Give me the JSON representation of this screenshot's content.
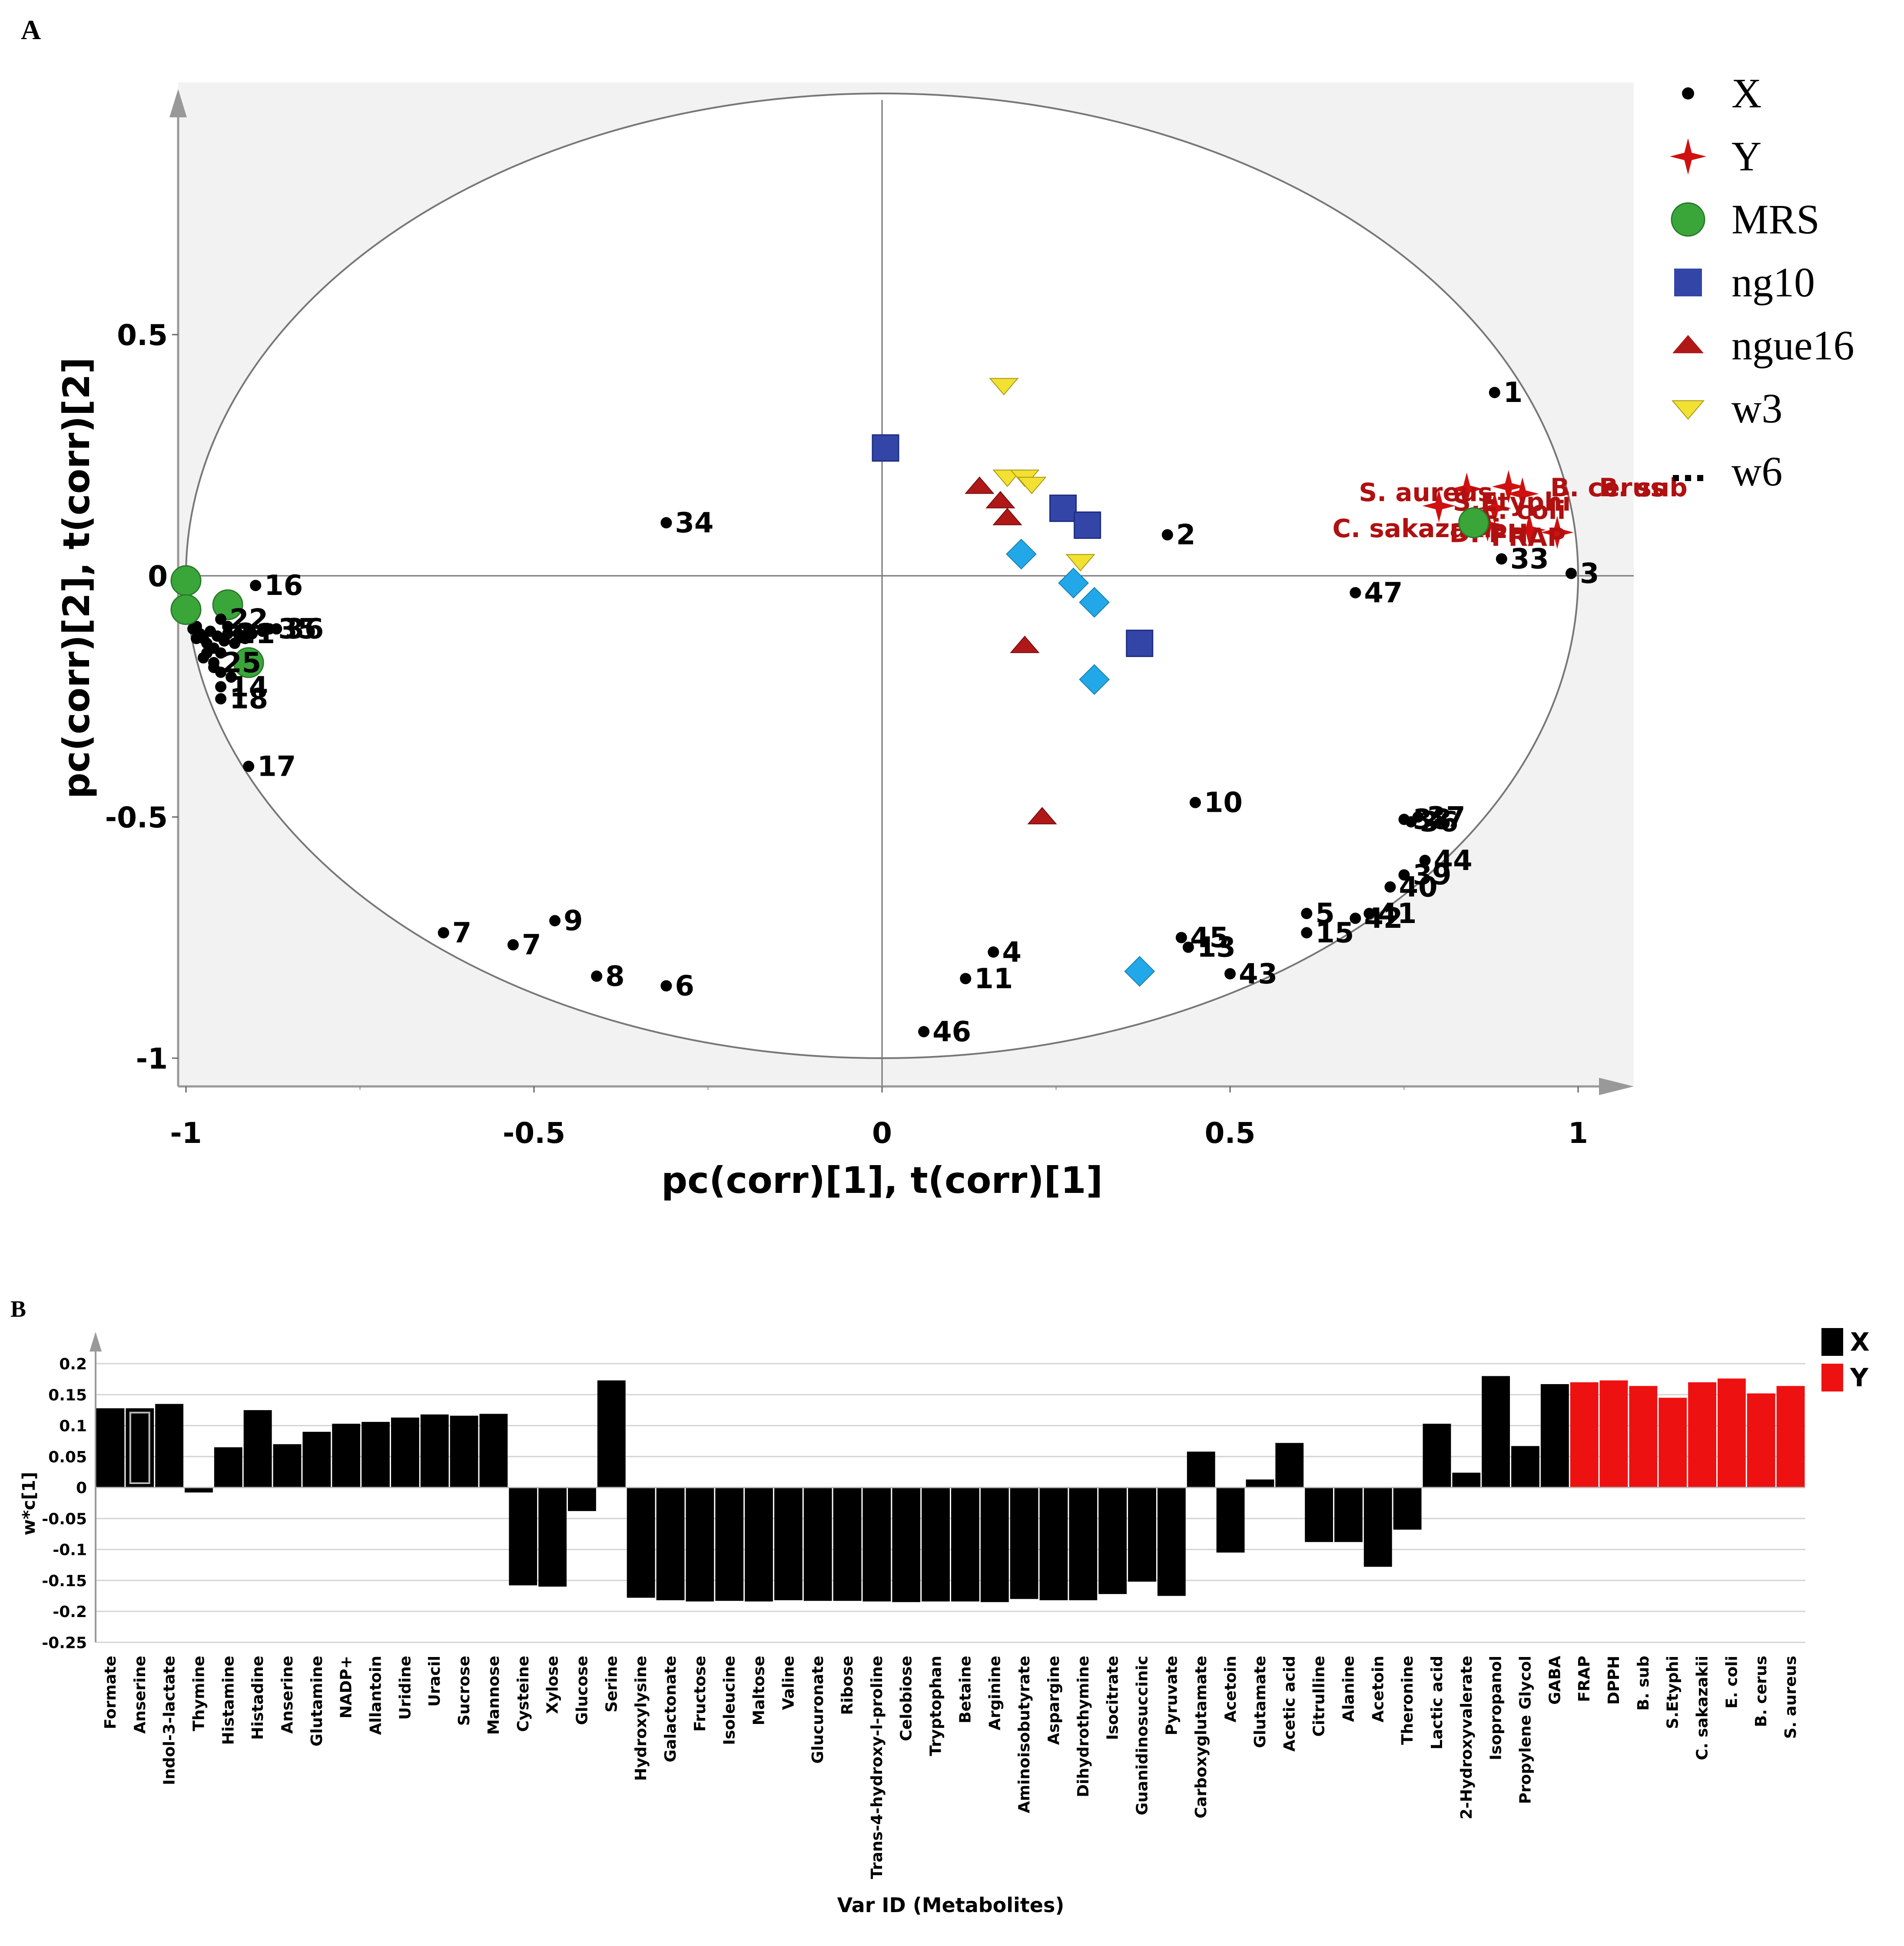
{
  "panels": {
    "a_label": "A",
    "b_label": "B"
  },
  "colors": {
    "X": "#000000",
    "Y": "#d01010",
    "MRS": "#3aa63a",
    "ng10": "#3346a8",
    "ngue16": "#b01818",
    "w3": "#f2e033",
    "w6": "#22a8e8",
    "plot_bg": "#f2f2f2",
    "bar_x": "#000000",
    "bar_y": "#ee1111",
    "y_label": "#b01010"
  },
  "chart_data": [
    {
      "type": "scatter",
      "title": "",
      "xlabel": "pc(corr)[1], t(corr)[1]",
      "ylabel": "pc(corr)[2], t(corr)[2]",
      "xlim": [
        -1.02,
        1.08
      ],
      "ylim": [
        -1.06,
        1.01
      ],
      "xticks": [
        {
          "v": -1,
          "label": "-1"
        },
        {
          "v": -0.5,
          "label": "-0.5"
        },
        {
          "v": 0,
          "label": "0"
        },
        {
          "v": 0.5,
          "label": "0.5"
        },
        {
          "v": 1,
          "label": "1"
        }
      ],
      "yticks": [
        {
          "v": 0.5,
          "label": "0.5"
        },
        {
          "v": 0,
          "label": "0"
        },
        {
          "v": -0.5,
          "label": "-0.5"
        },
        {
          "v": -1,
          "label": "-1"
        }
      ],
      "legend": [
        {
          "name": "X",
          "marker": "dot"
        },
        {
          "name": "Y",
          "marker": "star"
        },
        {
          "name": "MRS",
          "marker": "circle"
        },
        {
          "name": "ng10",
          "marker": "square"
        },
        {
          "name": "ngue16",
          "marker": "triangle"
        },
        {
          "name": "w3",
          "marker": "triangle-down"
        },
        {
          "name": "w6",
          "marker": "ellipsis"
        }
      ],
      "x_loadings": [
        {
          "label": "1",
          "x": 0.88,
          "y": 0.38
        },
        {
          "label": "2",
          "x": 0.41,
          "y": 0.085
        },
        {
          "label": "3",
          "x": 0.99,
          "y": 0.005
        },
        {
          "label": "33",
          "x": 0.89,
          "y": 0.035
        },
        {
          "label": "47",
          "x": 0.68,
          "y": -0.035
        },
        {
          "label": "34",
          "x": -0.31,
          "y": 0.11
        },
        {
          "label": "16",
          "x": -0.9,
          "y": -0.02
        },
        {
          "label": "17",
          "x": -0.91,
          "y": -0.395
        },
        {
          "label": "10",
          "x": 0.45,
          "y": -0.47
        },
        {
          "label": "9",
          "x": -0.47,
          "y": -0.715
        },
        {
          "label": "7",
          "x": -0.63,
          "y": -0.74
        },
        {
          "label": "7",
          "x": -0.53,
          "y": -0.765
        },
        {
          "label": "8",
          "x": -0.41,
          "y": -0.83
        },
        {
          "label": "6",
          "x": -0.31,
          "y": -0.85
        },
        {
          "label": "4",
          "x": 0.16,
          "y": -0.78
        },
        {
          "label": "11",
          "x": 0.12,
          "y": -0.835
        },
        {
          "label": "46",
          "x": 0.06,
          "y": -0.945
        },
        {
          "label": "45",
          "x": 0.43,
          "y": -0.75
        },
        {
          "label": "13",
          "x": 0.44,
          "y": -0.77
        },
        {
          "label": "43",
          "x": 0.5,
          "y": -0.825
        },
        {
          "label": "5",
          "x": 0.61,
          "y": -0.7
        },
        {
          "label": "15",
          "x": 0.61,
          "y": -0.74
        },
        {
          "label": "41",
          "x": 0.7,
          "y": -0.7
        },
        {
          "label": "42",
          "x": 0.68,
          "y": -0.71
        },
        {
          "label": "40",
          "x": 0.73,
          "y": -0.645
        },
        {
          "label": "39",
          "x": 0.75,
          "y": -0.62
        },
        {
          "label": "44",
          "x": 0.78,
          "y": -0.59
        },
        {
          "label": "37",
          "x": 0.77,
          "y": -0.5
        },
        {
          "label": "38",
          "x": 0.75,
          "y": -0.505
        },
        {
          "label": "36",
          "x": 0.76,
          "y": -0.51
        },
        {
          "label": "35",
          "x": -0.88,
          "y": -0.11
        },
        {
          "label": "36",
          "x": -0.87,
          "y": -0.11
        },
        {
          "label": "22",
          "x": -0.95,
          "y": -0.09
        },
        {
          "label": "21",
          "x": -0.94,
          "y": -0.12
        },
        {
          "label": "25",
          "x": -0.96,
          "y": -0.18
        },
        {
          "label": "14",
          "x": -0.95,
          "y": -0.23
        },
        {
          "label": "18",
          "x": -0.95,
          "y": -0.255
        }
      ],
      "x_cluster_unlabeled": [
        [
          -0.99,
          -0.11
        ],
        [
          -0.98,
          -0.12
        ],
        [
          -0.975,
          -0.13
        ],
        [
          -0.97,
          -0.14
        ],
        [
          -0.965,
          -0.115
        ],
        [
          -0.96,
          -0.15
        ],
        [
          -0.955,
          -0.125
        ],
        [
          -0.95,
          -0.16
        ],
        [
          -0.945,
          -0.135
        ],
        [
          -0.94,
          -0.105
        ],
        [
          -0.93,
          -0.14
        ],
        [
          -0.925,
          -0.12
        ],
        [
          -0.92,
          -0.17
        ],
        [
          -0.915,
          -0.13
        ],
        [
          -0.91,
          -0.115
        ],
        [
          -0.985,
          -0.13
        ],
        [
          -0.97,
          -0.16
        ],
        [
          -0.96,
          -0.19
        ],
        [
          -0.975,
          -0.17
        ],
        [
          -0.905,
          -0.12
        ],
        [
          -0.89,
          -0.115
        ],
        [
          -0.95,
          -0.2
        ],
        [
          -0.935,
          -0.21
        ],
        [
          -0.985,
          -0.105
        ]
      ],
      "y_loadings": [
        {
          "label": "S. aureus",
          "x": 0.84,
          "y": 0.18
        },
        {
          "label": "B. cerus",
          "x": 0.9,
          "y": 0.185
        },
        {
          "label": "B. sub",
          "x": 0.92,
          "y": 0.17
        },
        {
          "label": "E. coli",
          "x": 0.88,
          "y": 0.14
        },
        {
          "label": "S.Etyphi",
          "x": 0.8,
          "y": 0.145
        },
        {
          "label": "C. sakazakii",
          "x": 0.87,
          "y": 0.105
        },
        {
          "label": "DPPH",
          "x": 0.93,
          "y": 0.095
        },
        {
          "label": "FRAP",
          "x": 0.97,
          "y": 0.09
        }
      ],
      "y_text_labels": [
        {
          "text": "S. aureus",
          "x": 0.685,
          "y": 0.155,
          "dx_class": "a"
        },
        {
          "text": "B. cerus",
          "x": 0.96,
          "y": 0.165
        },
        {
          "text": "B. sub",
          "x": 1.03,
          "y": 0.165
        },
        {
          "text": "S.Etyphi",
          "x": 0.82,
          "y": 0.135
        },
        {
          "text": "E. coli",
          "x": 0.86,
          "y": 0.118
        },
        {
          "text": "C. sakazakii",
          "x": 0.647,
          "y": 0.08
        },
        {
          "text": "DPPH",
          "x": 0.815,
          "y": 0.07
        },
        {
          "text": "FRAP",
          "x": 0.875,
          "y": 0.062
        }
      ],
      "MRS": [
        [
          0.85,
          0.11
        ],
        [
          -1.0,
          -0.01
        ],
        [
          -1.0,
          -0.07
        ],
        [
          -0.94,
          -0.06
        ],
        [
          -0.91,
          -0.18
        ]
      ],
      "ng10": [
        [
          0.005,
          0.265
        ],
        [
          0.26,
          0.14
        ],
        [
          0.295,
          0.105
        ],
        [
          0.37,
          -0.14
        ]
      ],
      "ngue16": [
        [
          0.14,
          0.185
        ],
        [
          0.17,
          0.155
        ],
        [
          0.18,
          0.12
        ],
        [
          0.205,
          -0.145
        ],
        [
          0.23,
          -0.5
        ]
      ],
      "w3": [
        [
          0.175,
          0.395
        ],
        [
          0.18,
          0.205
        ],
        [
          0.205,
          0.205
        ],
        [
          0.215,
          0.19
        ],
        [
          0.285,
          0.03
        ]
      ],
      "w6": [
        [
          0.2,
          0.045
        ],
        [
          0.275,
          -0.015
        ],
        [
          0.305,
          -0.055
        ],
        [
          0.305,
          -0.215
        ],
        [
          0.37,
          -0.82
        ]
      ]
    },
    {
      "type": "bar",
      "title": "",
      "xlabel": "Var ID (Metabolites)",
      "ylabel": "w*c[1]",
      "ylim": [
        -0.25,
        0.2
      ],
      "yticks": [
        {
          "v": 0.2,
          "label": "0.2"
        },
        {
          "v": 0.15,
          "label": "0.15"
        },
        {
          "v": 0.1,
          "label": "0.1"
        },
        {
          "v": 0.05,
          "label": "0.05"
        },
        {
          "v": 0,
          "label": "0"
        },
        {
          "v": -0.05,
          "label": "-0.05"
        },
        {
          "v": -0.1,
          "label": "-0.1"
        },
        {
          "v": -0.15,
          "label": "-0.15"
        },
        {
          "v": -0.2,
          "label": "-0.2"
        },
        {
          "v": -0.25,
          "label": "-0.25"
        }
      ],
      "legend": [
        {
          "name": "X"
        },
        {
          "name": "Y"
        }
      ],
      "highlighted_index": 1,
      "categories": [
        "Formate",
        "Anserine",
        "Indol-3-lactate",
        "Thymine",
        "Histamine",
        "Histadine",
        "Anserine",
        "Glutamine",
        "NADP+",
        "Allantoin",
        "Uridine",
        "Uracil",
        "Sucrose",
        "Mannose",
        "Cysteine",
        "Xylose",
        "Glucose",
        "Serine",
        "Hydroxylysine",
        "Galactonate",
        "Fructose",
        "Isoleucine",
        "Maltose",
        "Valine",
        "Glucuronate",
        "Ribose",
        "Trans-4-hydroxy-l-proline",
        "Celobiose",
        "Tryptophan",
        "Betaine",
        "Arginine",
        "Aminoisobutyrate",
        "Aspargine",
        "Dihydrothymine",
        "Isocitrate",
        "Guanidinosuccinic",
        "Pyruvate",
        "Carboxyglutamate",
        "Acetoin",
        "Glutamate",
        "Acetic acid",
        "Citrulline",
        "Alanine",
        "Acetoin",
        "Theronine",
        "Lactic acid",
        "2-Hydroxyvalerate",
        "Isopropanol",
        "Propylene Glycol",
        "GABA",
        "FRAP",
        "DPPH",
        "B. sub",
        "S.Etyphi",
        "C. sakazakii",
        "E. coli",
        "B. cerus",
        "S. aureus"
      ],
      "groups": [
        "X",
        "X",
        "X",
        "X",
        "X",
        "X",
        "X",
        "X",
        "X",
        "X",
        "X",
        "X",
        "X",
        "X",
        "X",
        "X",
        "X",
        "X",
        "X",
        "X",
        "X",
        "X",
        "X",
        "X",
        "X",
        "X",
        "X",
        "X",
        "X",
        "X",
        "X",
        "X",
        "X",
        "X",
        "X",
        "X",
        "X",
        "X",
        "X",
        "X",
        "X",
        "X",
        "X",
        "X",
        "X",
        "X",
        "X",
        "X",
        "X",
        "X",
        "Y",
        "Y",
        "Y",
        "Y",
        "Y",
        "Y",
        "Y",
        "Y"
      ],
      "values": [
        0.128,
        0.128,
        0.135,
        -0.008,
        0.065,
        0.125,
        0.07,
        0.09,
        0.103,
        0.106,
        0.113,
        0.118,
        0.116,
        0.119,
        -0.158,
        -0.16,
        -0.038,
        0.173,
        -0.178,
        -0.182,
        -0.184,
        -0.183,
        -0.184,
        -0.182,
        -0.183,
        -0.183,
        -0.184,
        -0.185,
        -0.184,
        -0.184,
        -0.185,
        -0.18,
        -0.182,
        -0.182,
        -0.172,
        -0.152,
        -0.175,
        0.058,
        -0.105,
        0.013,
        0.072,
        -0.088,
        -0.088,
        -0.128,
        -0.068,
        0.103,
        0.024,
        0.18,
        0.067,
        0.167,
        0.17,
        0.173,
        0.164,
        0.145,
        0.17,
        0.176,
        0.152,
        0.164
      ]
    }
  ]
}
